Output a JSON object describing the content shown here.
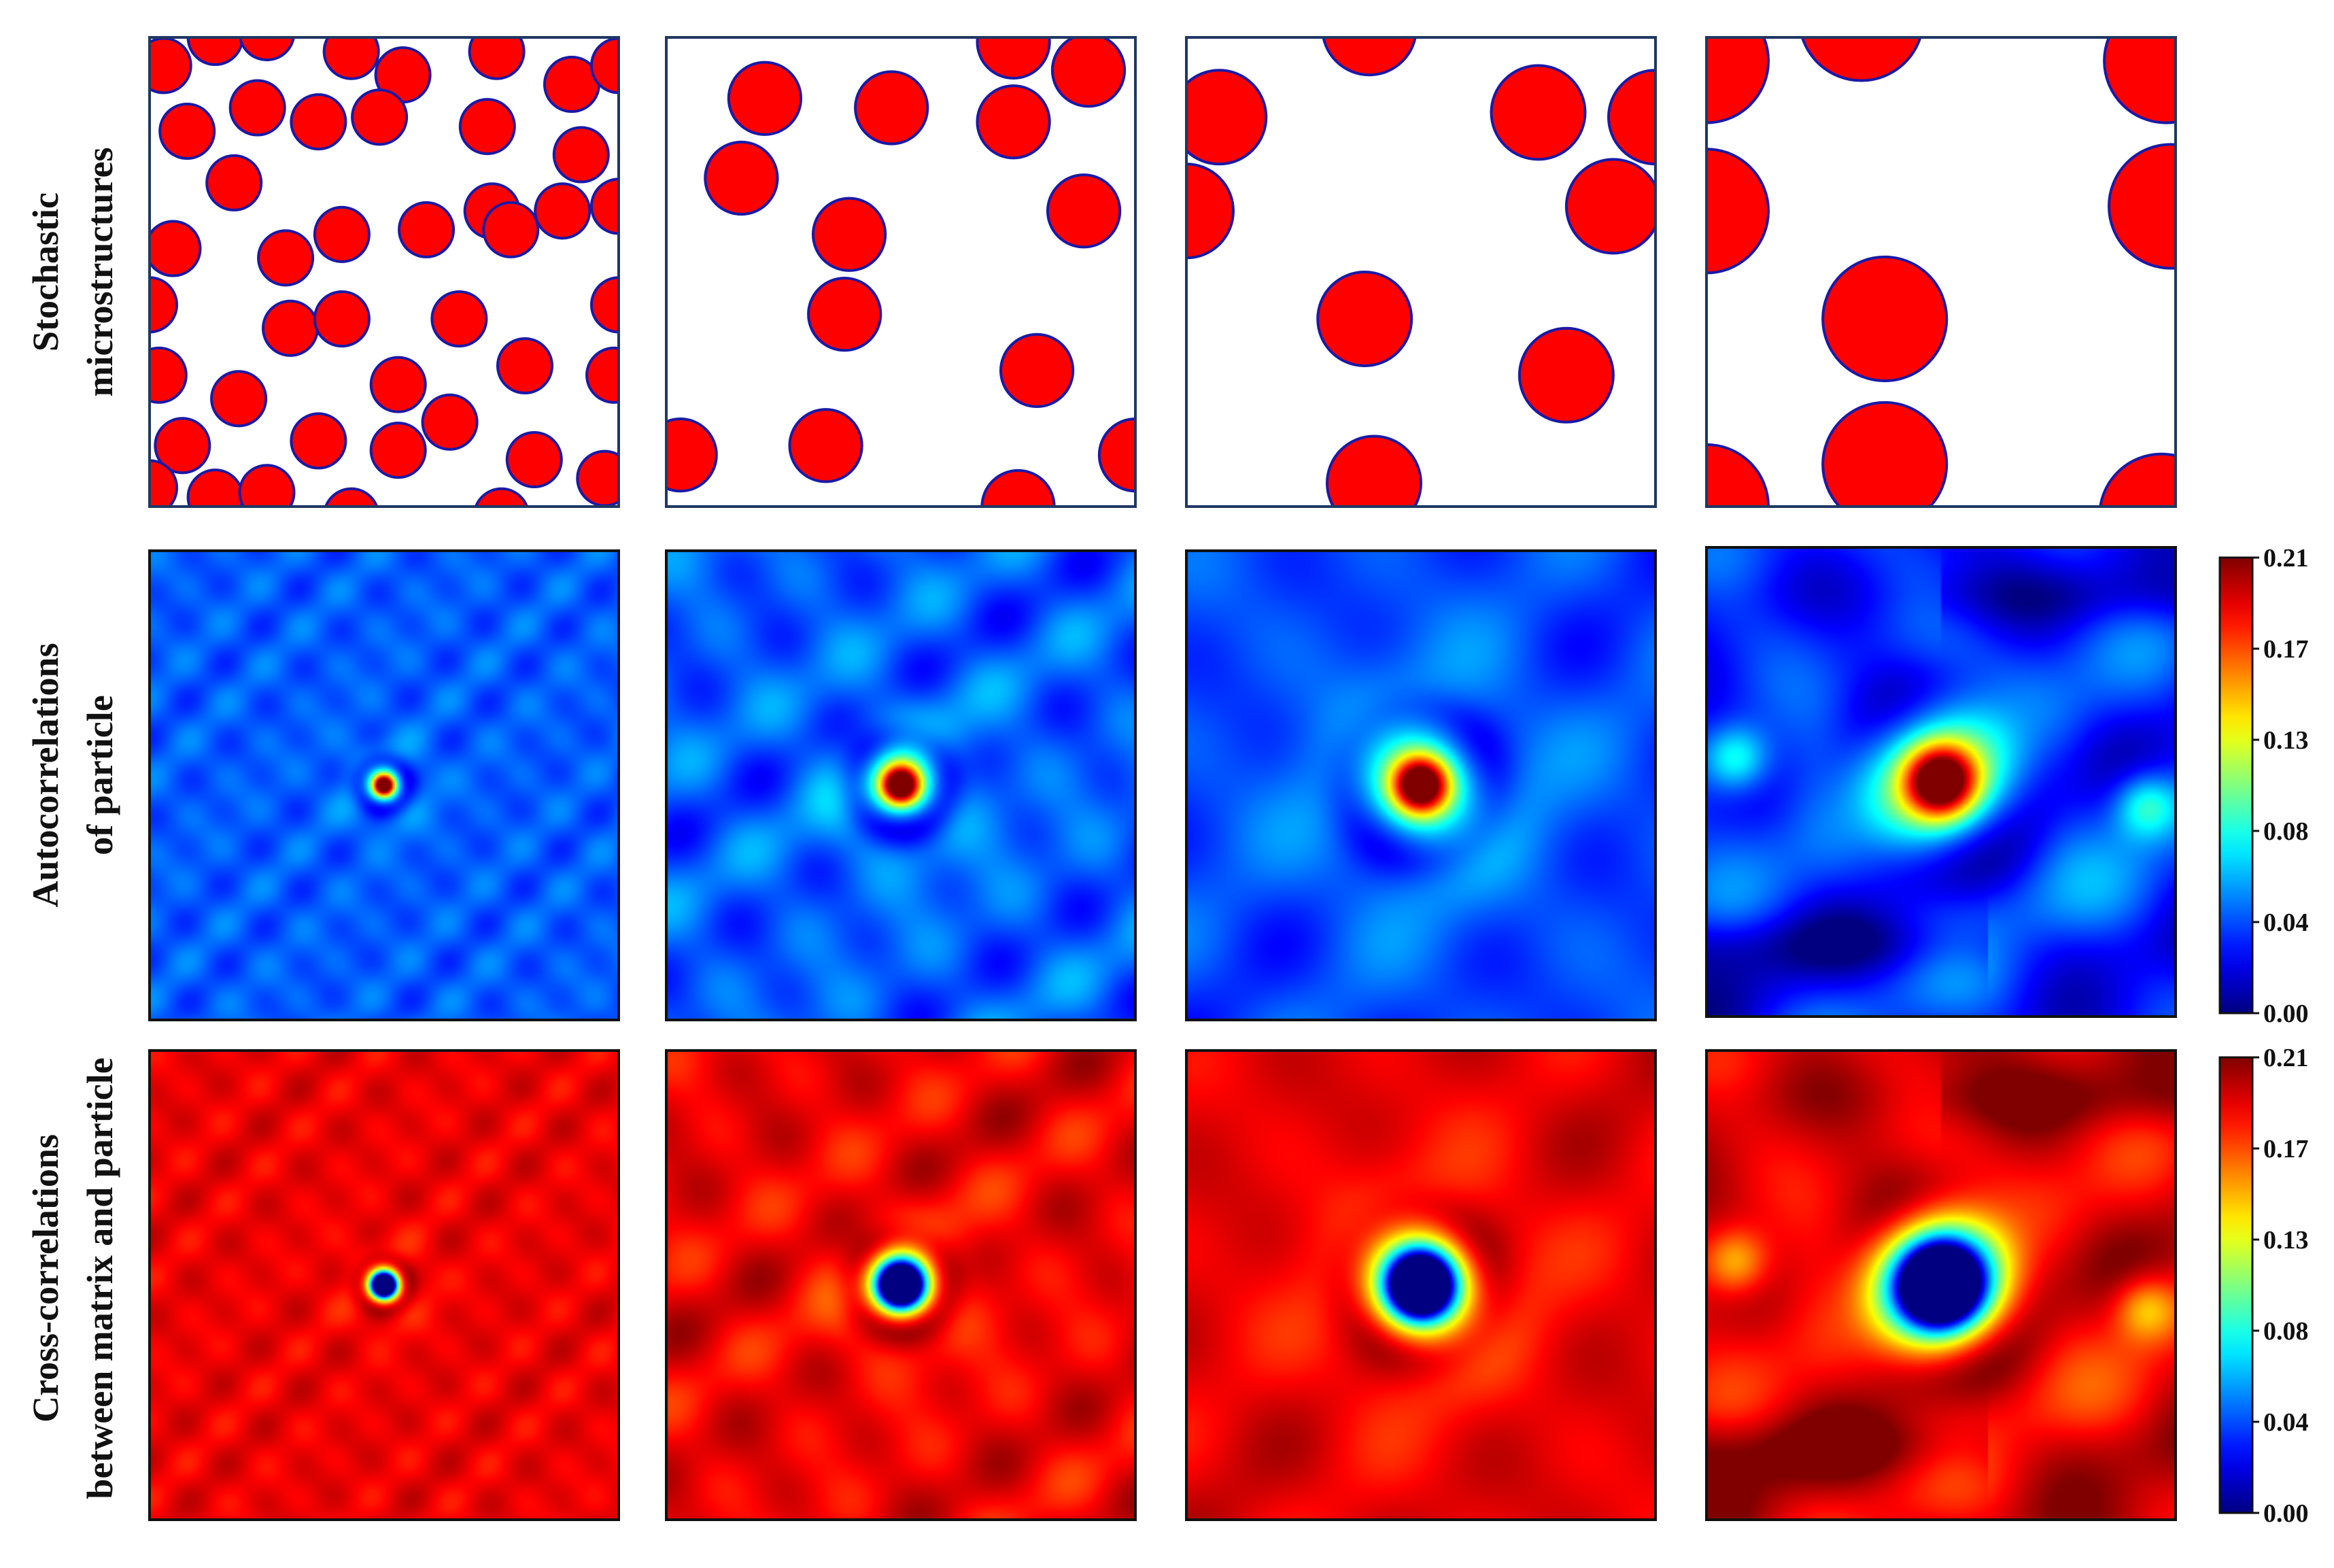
{
  "row_labels": [
    [
      "Stochastic",
      "microstructures"
    ],
    [
      "Autocorrelations",
      "of particle"
    ],
    [
      "Cross-correlations",
      "between matrix and particle"
    ]
  ],
  "colormap": "jet",
  "colorbar": {
    "ticks": [
      "0.21",
      "0.17",
      "0.13",
      "0.08",
      "0.04",
      "0.00"
    ],
    "range": [
      0.0,
      0.21
    ]
  },
  "colors": {
    "particle_fill": "#ff0000",
    "particle_edge": "#1a1aa6",
    "panel_border": "#1f3864",
    "map_border": "#111111"
  },
  "microstructures": [
    {
      "particle_radius": 0.058,
      "centers": [
        [
          0.03,
          0.06
        ],
        [
          0.14,
          0.0
        ],
        [
          0.25,
          -0.01
        ],
        [
          0.43,
          0.03
        ],
        [
          0.54,
          0.08
        ],
        [
          0.74,
          0.03
        ],
        [
          0.9,
          0.1
        ],
        [
          1.0,
          0.06
        ],
        [
          0.08,
          0.2
        ],
        [
          0.23,
          0.15
        ],
        [
          0.36,
          0.18
        ],
        [
          0.49,
          0.17
        ],
        [
          0.72,
          0.19
        ],
        [
          0.92,
          0.25
        ],
        [
          0.18,
          0.31
        ],
        [
          0.73,
          0.37
        ],
        [
          0.88,
          0.37
        ],
        [
          1.0,
          0.36
        ],
        [
          0.05,
          0.45
        ],
        [
          0.29,
          0.47
        ],
        [
          0.41,
          0.42
        ],
        [
          0.59,
          0.41
        ],
        [
          0.77,
          0.41
        ],
        [
          0.0,
          0.57
        ],
        [
          0.3,
          0.62
        ],
        [
          0.41,
          0.6
        ],
        [
          0.66,
          0.6
        ],
        [
          1.0,
          0.57
        ],
        [
          0.8,
          0.7
        ],
        [
          0.02,
          0.72
        ],
        [
          0.53,
          0.74
        ],
        [
          0.99,
          0.72
        ],
        [
          0.19,
          0.77
        ],
        [
          0.64,
          0.82
        ],
        [
          0.36,
          0.86
        ],
        [
          0.53,
          0.88
        ],
        [
          0.07,
          0.87
        ],
        [
          0.82,
          0.9
        ],
        [
          0.97,
          0.94
        ],
        [
          0.0,
          0.96
        ],
        [
          0.14,
          0.98
        ],
        [
          0.25,
          0.97
        ],
        [
          0.43,
          1.02
        ],
        [
          0.75,
          1.02
        ]
      ]
    },
    {
      "particle_radius": 0.077,
      "centers": [
        [
          0.21,
          0.13
        ],
        [
          0.48,
          0.15
        ],
        [
          0.74,
          0.18
        ],
        [
          0.9,
          0.07
        ],
        [
          0.74,
          0.01
        ],
        [
          0.16,
          0.3
        ],
        [
          0.39,
          0.42
        ],
        [
          0.89,
          0.37
        ],
        [
          0.38,
          0.59
        ],
        [
          0.79,
          0.71
        ],
        [
          0.03,
          0.89
        ],
        [
          0.34,
          0.87
        ],
        [
          0.75,
          1.0
        ],
        [
          1.0,
          0.89
        ]
      ]
    },
    {
      "particle_radius": 0.1,
      "centers": [
        [
          0.39,
          -0.02
        ],
        [
          0.07,
          0.17
        ],
        [
          0.75,
          0.16
        ],
        [
          1.0,
          0.17
        ],
        [
          0.91,
          0.36
        ],
        [
          0.0,
          0.37
        ],
        [
          0.38,
          0.6
        ],
        [
          0.81,
          0.72
        ],
        [
          0.4,
          0.95
        ]
      ]
    },
    {
      "particle_radius": 0.132,
      "centers": [
        [
          0.0,
          0.05
        ],
        [
          0.33,
          -0.04
        ],
        [
          0.98,
          0.05
        ],
        [
          0.0,
          0.37
        ],
        [
          0.99,
          0.36
        ],
        [
          0.38,
          0.6
        ],
        [
          0.38,
          0.91
        ],
        [
          0.0,
          1.0
        ],
        [
          0.97,
          1.02
        ]
      ]
    }
  ],
  "autocorrelation_maps": [
    {
      "base": 0.045,
      "wavelength": 0.16,
      "wave_amp": 0.008,
      "peak_sigma": 0.016,
      "ring_r": 0.05,
      "ring_w": 0.018,
      "ring_depth": 0.03,
      "drift": [
        0,
        0
      ]
    },
    {
      "base": 0.045,
      "wavelength": 0.3,
      "wave_amp": 0.014,
      "peak_sigma": 0.03,
      "ring_r": 0.1,
      "ring_w": 0.03,
      "ring_depth": 0.03,
      "drift": [
        0.5,
        0.2
      ]
    },
    {
      "base": 0.04,
      "wavelength": 0.42,
      "wave_amp": 0.01,
      "peak_sigma": 0.045,
      "ring_r": 0.16,
      "ring_w": 0.04,
      "ring_depth": 0.02,
      "drift": [
        0,
        0
      ]
    },
    {
      "base": 0.03,
      "wavelength": 0.5,
      "wave_amp": 0.02,
      "peak_sigma": 0.06,
      "ring_r": 0.21,
      "ring_w": 0.05,
      "ring_depth": 0.015,
      "drift": [
        0.6,
        0.25
      ],
      "lobes": true
    }
  ]
}
